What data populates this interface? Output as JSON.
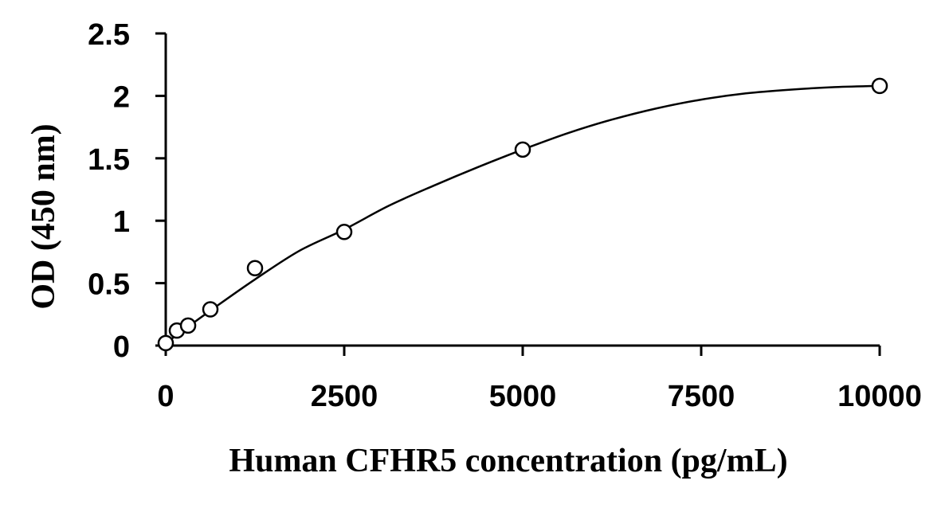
{
  "chart_data": {
    "type": "scatter",
    "title": "",
    "xlabel": "Human CFHR5 concentration (pg/mL)",
    "ylabel": "OD (450 nm)",
    "xlim": [
      0,
      10000
    ],
    "ylim": [
      0,
      2.5
    ],
    "x_ticks": [
      0,
      2500,
      5000,
      7500,
      10000
    ],
    "x_tick_labels": [
      "0",
      "2500",
      "5000",
      "7500",
      "10000"
    ],
    "y_ticks": [
      0,
      0.5,
      1,
      1.5,
      2,
      2.5
    ],
    "y_tick_labels": [
      "0",
      "0.5",
      "1",
      "1.5",
      "2",
      "2.5"
    ],
    "grid": false,
    "legend": "none",
    "series": [
      {
        "marker": "open-circle",
        "x": [
          0,
          156,
          313,
          625,
          1250,
          2500,
          5000,
          10000
        ],
        "y": [
          0.02,
          0.12,
          0.16,
          0.29,
          0.62,
          0.91,
          1.57,
          2.08
        ]
      }
    ],
    "fit_curve": {
      "x": [
        0,
        625,
        1250,
        1875,
        2500,
        3125,
        3750,
        4375,
        5000,
        5625,
        6250,
        6875,
        7500,
        8125,
        8750,
        9375,
        10000
      ],
      "y": [
        0.02,
        0.28,
        0.53,
        0.76,
        0.93,
        1.12,
        1.28,
        1.43,
        1.57,
        1.7,
        1.81,
        1.9,
        1.97,
        2.02,
        2.05,
        2.07,
        2.08
      ]
    }
  }
}
